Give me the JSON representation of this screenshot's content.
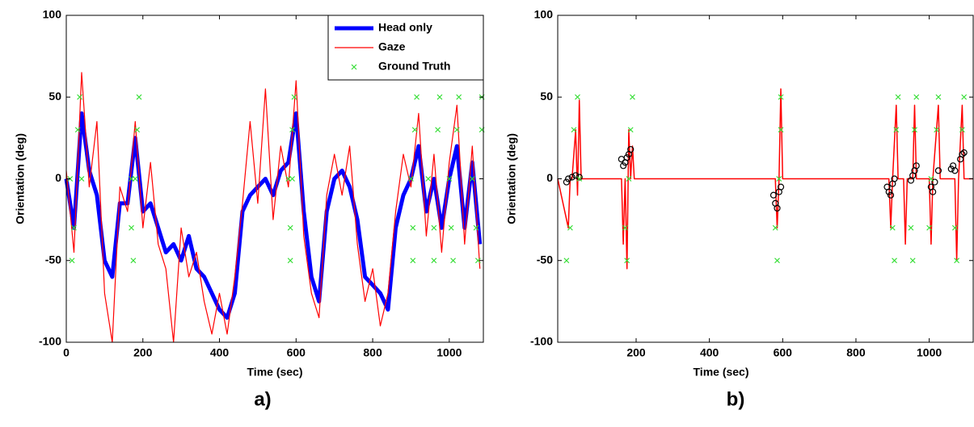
{
  "chart_data": [
    {
      "type": "line",
      "xlabel": "Time (sec)",
      "ylabel": "Orientation (deg)",
      "caption": "a)",
      "xlim": [
        0,
        1089
      ],
      "ylim": [
        -100,
        100
      ],
      "xticks": [
        0,
        200,
        400,
        600,
        800,
        1000
      ],
      "yticks": [
        -100,
        -50,
        0,
        50,
        100
      ],
      "legend": "upper right",
      "series": [
        {
          "name": "Head only",
          "color": "#0000ff",
          "mode": "line",
          "width": 5,
          "x": [
            0,
            20,
            40,
            60,
            80,
            100,
            120,
            140,
            160,
            180,
            200,
            220,
            240,
            260,
            280,
            300,
            320,
            340,
            360,
            380,
            400,
            420,
            440,
            460,
            480,
            500,
            520,
            540,
            560,
            580,
            600,
            620,
            640,
            660,
            680,
            700,
            720,
            740,
            760,
            780,
            800,
            820,
            840,
            860,
            880,
            900,
            920,
            940,
            960,
            980,
            1000,
            1020,
            1040,
            1060,
            1080
          ],
          "values": [
            0,
            -30,
            40,
            5,
            -10,
            -50,
            -60,
            -15,
            -15,
            25,
            -20,
            -15,
            -30,
            -45,
            -40,
            -50,
            -35,
            -55,
            -60,
            -70,
            -80,
            -85,
            -70,
            -20,
            -10,
            -5,
            0,
            -10,
            5,
            10,
            40,
            -20,
            -60,
            -75,
            -20,
            0,
            5,
            -5,
            -25,
            -60,
            -65,
            -70,
            -80,
            -30,
            -10,
            0,
            20,
            -20,
            0,
            -30,
            0,
            20,
            -30,
            10,
            -40
          ]
        },
        {
          "name": "Gaze",
          "color": "#ff0000",
          "mode": "line",
          "width": 1.2,
          "x": [
            0,
            20,
            40,
            60,
            80,
            100,
            120,
            140,
            160,
            180,
            200,
            220,
            240,
            260,
            280,
            300,
            320,
            340,
            360,
            380,
            400,
            420,
            440,
            460,
            480,
            500,
            520,
            540,
            560,
            580,
            600,
            620,
            640,
            660,
            680,
            700,
            720,
            740,
            760,
            780,
            800,
            820,
            840,
            860,
            880,
            900,
            920,
            940,
            960,
            980,
            1000,
            1020,
            1040,
            1060,
            1080
          ],
          "values": [
            5,
            -45,
            65,
            -5,
            35,
            -70,
            -100,
            -5,
            -20,
            35,
            -30,
            10,
            -40,
            -55,
            -100,
            -30,
            -60,
            -45,
            -75,
            -95,
            -70,
            -95,
            -60,
            -15,
            35,
            -15,
            55,
            -25,
            20,
            -5,
            60,
            -35,
            -70,
            -85,
            -10,
            15,
            -10,
            20,
            -40,
            -75,
            -55,
            -90,
            -70,
            -20,
            15,
            -5,
            40,
            -35,
            15,
            -45,
            10,
            45,
            -40,
            20,
            -55
          ]
        },
        {
          "name": "Ground Truth",
          "color": "#33dd33",
          "mode": "x",
          "x": [
            10,
            15,
            20,
            30,
            35,
            40,
            170,
            170,
            175,
            180,
            185,
            190,
            580,
            585,
            585,
            590,
            595,
            590,
            900,
            905,
            905,
            910,
            915,
            945,
            960,
            960,
            970,
            975,
            1000,
            1005,
            1010,
            1020,
            1025,
            1060,
            1070,
            1075,
            1085,
            1085
          ],
          "values": [
            0,
            -50,
            -30,
            30,
            50,
            0,
            0,
            -30,
            -50,
            0,
            30,
            50,
            0,
            -30,
            -50,
            30,
            50,
            0,
            0,
            -30,
            -50,
            30,
            50,
            0,
            -30,
            -50,
            30,
            50,
            0,
            -30,
            -50,
            30,
            50,
            0,
            -30,
            -50,
            30,
            50
          ]
        }
      ]
    },
    {
      "type": "line",
      "xlabel": "Time (sec)",
      "ylabel": "Orientation (deg)",
      "caption": "b)",
      "xlim": [
        -14,
        1120
      ],
      "ylim": [
        -100,
        100
      ],
      "xticks": [
        200,
        400,
        600,
        800,
        1000
      ],
      "yticks": [
        -100,
        -50,
        0,
        50,
        100
      ],
      "series": [
        {
          "color": "#ff0000",
          "mode": "line",
          "width": 1.5,
          "x": [
            -14,
            15,
            20,
            25,
            35,
            40,
            45,
            50,
            160,
            165,
            170,
            175,
            180,
            185,
            190,
            195,
            580,
            585,
            590,
            595,
            600,
            890,
            895,
            900,
            910,
            915,
            930,
            935,
            940,
            955,
            960,
            965,
            1000,
            1005,
            1010,
            1025,
            1030,
            1070,
            1075,
            1080,
            1090,
            1095,
            1120
          ],
          "values": [
            0,
            -30,
            0,
            0,
            30,
            -10,
            48,
            0,
            0,
            -40,
            0,
            -55,
            30,
            0,
            20,
            0,
            0,
            -30,
            0,
            55,
            0,
            0,
            -30,
            0,
            45,
            0,
            0,
            -40,
            0,
            0,
            45,
            0,
            0,
            -40,
            0,
            45,
            0,
            0,
            -50,
            0,
            45,
            0,
            0
          ]
        },
        {
          "color": "#000000",
          "mode": "o",
          "x": [
            10,
            15,
            25,
            35,
            45,
            160,
            165,
            170,
            175,
            180,
            185,
            575,
            580,
            585,
            590,
            595,
            885,
            890,
            895,
            900,
            905,
            950,
            955,
            960,
            965,
            1005,
            1010,
            1015,
            1025,
            1060,
            1065,
            1070,
            1085,
            1090,
            1095
          ],
          "values": [
            -2,
            0,
            1,
            2,
            1,
            12,
            8,
            10,
            13,
            15,
            18,
            -10,
            -15,
            -18,
            -8,
            -5,
            -5,
            -8,
            -10,
            -3,
            0,
            -1,
            2,
            5,
            8,
            -5,
            -8,
            -2,
            5,
            6,
            8,
            5,
            12,
            15,
            16
          ]
        },
        {
          "color": "#33dd33",
          "mode": "x",
          "x": [
            10,
            20,
            30,
            40,
            45,
            170,
            175,
            180,
            185,
            190,
            580,
            585,
            590,
            595,
            595,
            900,
            905,
            910,
            915,
            950,
            955,
            960,
            965,
            1000,
            1005,
            1020,
            1025,
            1070,
            1075,
            1090,
            1095
          ],
          "values": [
            -50,
            -30,
            30,
            50,
            0,
            -30,
            -50,
            0,
            30,
            50,
            -30,
            -50,
            0,
            30,
            50,
            -30,
            -50,
            30,
            50,
            -30,
            -50,
            30,
            50,
            -30,
            0,
            30,
            50,
            -30,
            -50,
            30,
            50
          ]
        }
      ]
    }
  ]
}
